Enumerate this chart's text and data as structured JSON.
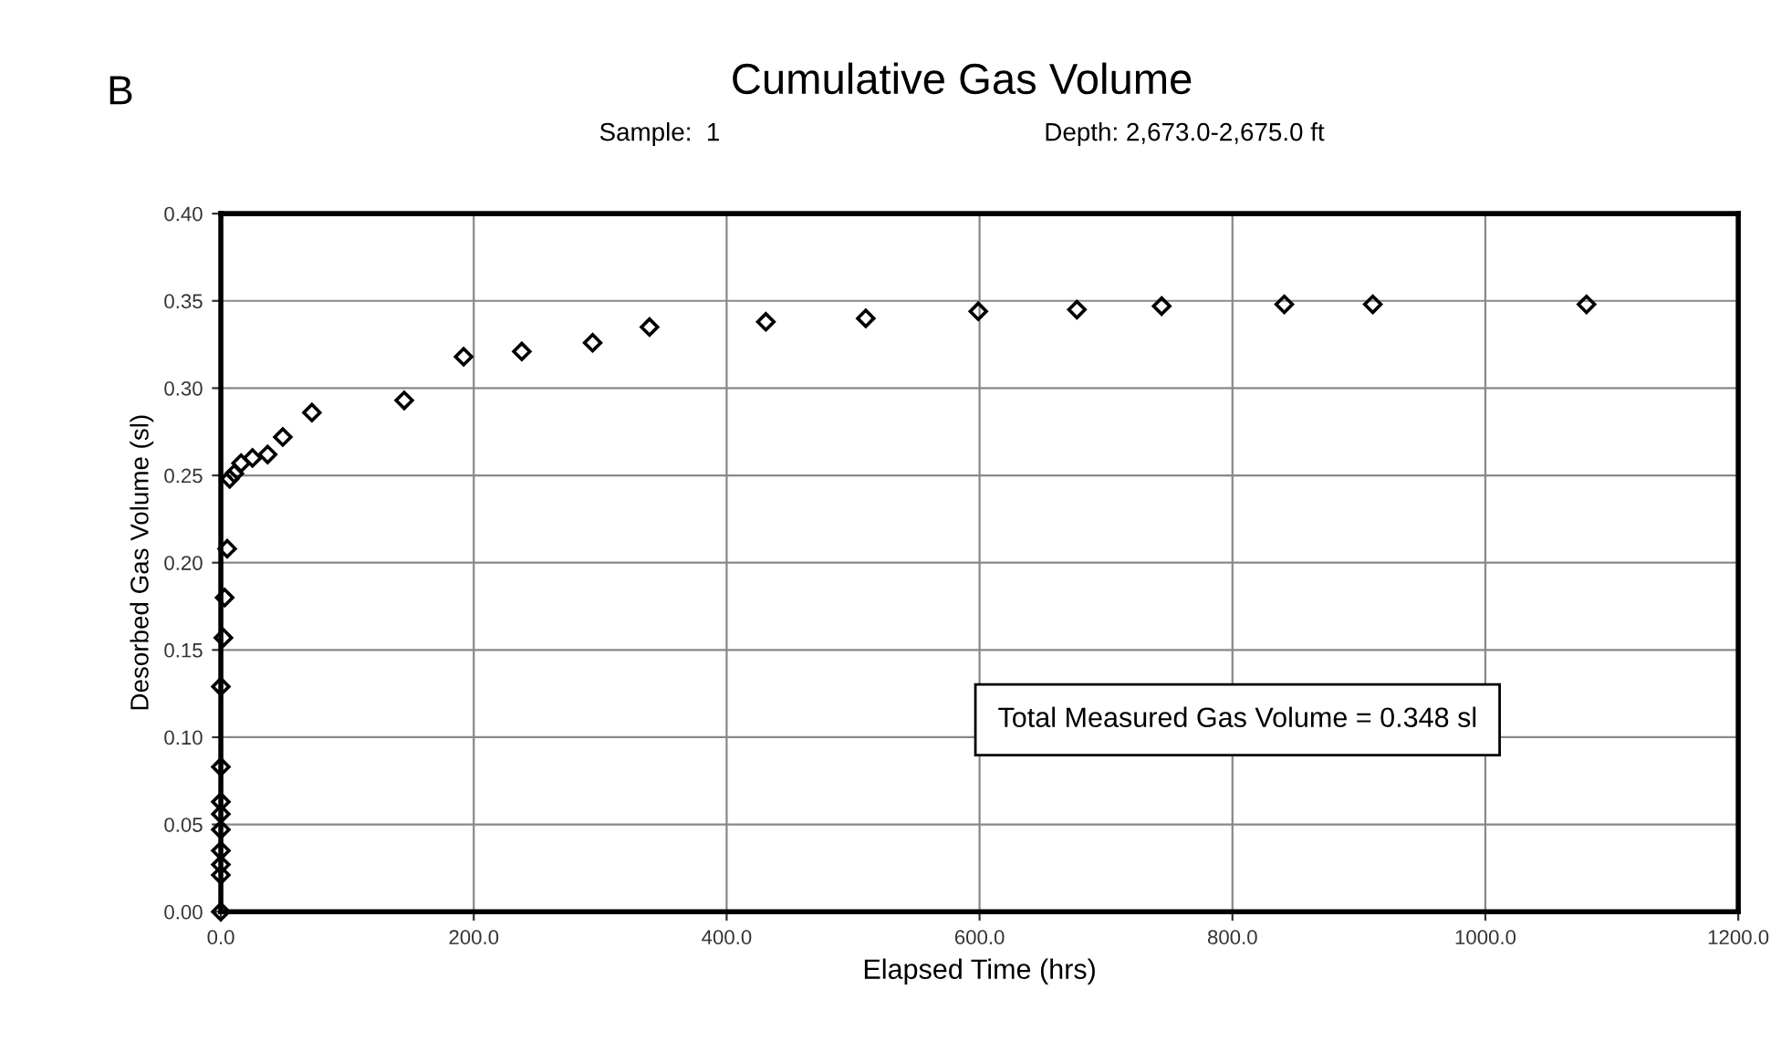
{
  "chart_data": {
    "type": "scatter",
    "title": "Cumulative Gas Volume",
    "subtitle": "Sample:  1                                              Depth: 2,673.0-2,675.0 ft",
    "xlabel": "Elapsed Time (hrs)",
    "ylabel": "Desorbed Gas Volume (sl)",
    "annotations": [
      "B",
      "Total Measured Gas Volume = 0.348 sl"
    ],
    "series": [
      {
        "color": "#000000",
        "x": [
          0,
          0,
          0,
          0,
          0,
          0,
          0,
          0,
          0,
          2,
          3,
          5,
          7,
          10.6,
          16,
          25,
          37,
          49,
          72,
          145,
          192,
          238,
          294,
          339,
          431,
          510,
          599,
          677,
          744,
          841,
          911,
          1080
        ],
        "values": [
          0,
          0.021,
          0.027,
          0.035,
          0.047,
          0.056,
          0.063,
          0.083,
          0.129,
          0.157,
          0.18,
          0.208,
          0.248,
          0.251,
          0.257,
          0.26,
          0.262,
          0.272,
          0.286,
          0.293,
          0.318,
          0.321,
          0.326,
          0.335,
          0.338,
          0.34,
          0.344,
          0.345,
          0.347,
          0.348,
          0.348,
          0.348
        ]
      }
    ],
    "xlim": [
      0,
      1200
    ],
    "xticks": [
      {
        "value": 0,
        "label": "0.0"
      },
      {
        "value": 200,
        "label": "200.0"
      },
      {
        "value": 400,
        "label": "400.0"
      },
      {
        "value": 600,
        "label": "600.0"
      },
      {
        "value": 800,
        "label": "800.0"
      },
      {
        "value": 1000,
        "label": "1000.0"
      },
      {
        "value": 1200,
        "label": "1200.0"
      }
    ],
    "ylim": [
      0,
      0.4
    ],
    "yticks": [
      {
        "value": 0,
        "label": "0.00"
      },
      {
        "value": 0.05,
        "label": "0.05"
      },
      {
        "value": 0.1,
        "label": "0.10"
      },
      {
        "value": 0.15,
        "label": "0.15"
      },
      {
        "value": 0.2,
        "label": "0.20"
      },
      {
        "value": 0.25,
        "label": "0.25"
      },
      {
        "value": 0.3,
        "label": "0.30"
      },
      {
        "value": 0.35,
        "label": "0.35"
      },
      {
        "value": 0.4,
        "label": "0.40"
      }
    ],
    "grid": true,
    "marker": "diamond",
    "legend": false
  }
}
